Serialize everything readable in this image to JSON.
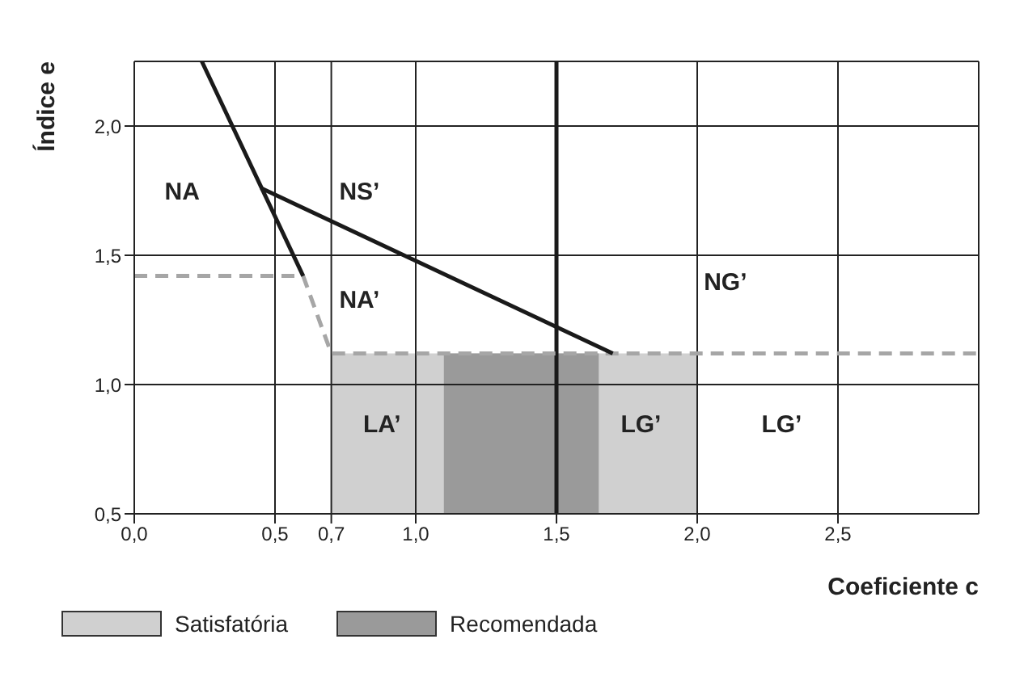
{
  "chart_data": {
    "type": "line",
    "xlabel": "Coeficiente c",
    "ylabel": "Índice e",
    "xlim": [
      0,
      3
    ],
    "ylim": [
      0.5,
      2.25
    ],
    "xticks": [
      {
        "value": 0,
        "label": "0,0"
      },
      {
        "value": 0.5,
        "label": "0,5"
      },
      {
        "value": 0.7,
        "label": "0,7"
      },
      {
        "value": 1,
        "label": "1,0"
      },
      {
        "value": 1.5,
        "label": "1,5"
      },
      {
        "value": 2,
        "label": "2,0"
      },
      {
        "value": 2.5,
        "label": "2,5"
      }
    ],
    "yticks": [
      {
        "value": 0.5,
        "label": "0,5"
      },
      {
        "value": 1,
        "label": "1,0"
      },
      {
        "value": 1.5,
        "label": "1,5"
      },
      {
        "value": 2,
        "label": "2,0"
      }
    ],
    "grid": true,
    "legend": "bottom",
    "series": [
      {
        "type": "area",
        "name": "Satisfatória",
        "color": "#d0d0d0",
        "x": [
          0.7,
          2.0
        ],
        "values": [
          1.12,
          1.12
        ]
      },
      {
        "type": "area",
        "name": "Recomendada",
        "color": "#9a9a9a",
        "x": [
          1.1,
          1.65
        ],
        "values": [
          1.12,
          1.12
        ]
      },
      {
        "color": "#a6a6a6",
        "line_style": "dashed",
        "x": [
          0,
          0.6,
          0.7,
          3.0
        ],
        "values": [
          1.42,
          1.42,
          1.12,
          1.12
        ]
      },
      {
        "color": "#1a1a1a",
        "line_style": "solid",
        "x": [
          0.24,
          0.6
        ],
        "values": [
          2.25,
          1.42
        ]
      },
      {
        "color": "#1a1a1a",
        "line_style": "solid",
        "x": [
          0.45,
          1.7
        ],
        "values": [
          1.76,
          1.12
        ]
      }
    ],
    "ref_lines": [
      {
        "axis": "x",
        "value": 1.5,
        "color": "#1a1a1a"
      }
    ],
    "annotations": [
      "NA",
      "NS’",
      "NA’",
      "NG’",
      "LA’",
      "LG’",
      "LG’"
    ]
  }
}
